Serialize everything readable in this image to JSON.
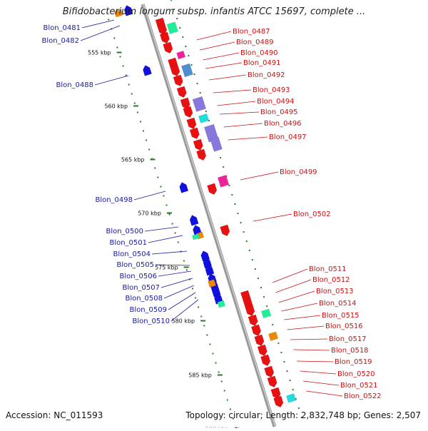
{
  "title": "Bifidobacterium longum subsp. infantis ATCC 15697, complete ...",
  "footer": {
    "accession": "Accession: NC_011593",
    "summary": "Topology: circular; Length: 2,832,748 bp; Genes: 2,507"
  },
  "kbp_ticks": [
    {
      "label": "555 kbp",
      "faint": false
    },
    {
      "label": "560 kbp",
      "faint": false
    },
    {
      "label": "565 kbp",
      "faint": false
    },
    {
      "label": "570 kbp",
      "faint": false
    },
    {
      "label": "575 kbp",
      "faint": false
    },
    {
      "label": "580 kbp",
      "faint": false
    },
    {
      "label": "585 kbp",
      "faint": false
    },
    {
      "label": "590 kbp",
      "faint": true
    }
  ],
  "left_genes": [
    "Blon_0481",
    "Blon_0482",
    "Blon_0488",
    "Blon_0498",
    "Blon_0500",
    "Blon_0501",
    "Blon_0504",
    "Blon_0505",
    "Blon_0506",
    "Blon_0507",
    "Blon_0508",
    "Blon_0509",
    "Blon_0510"
  ],
  "right_genes": [
    "Blon_0487",
    "Blon_0489",
    "Blon_0490",
    "Blon_0491",
    "Blon_0492",
    "Blon_0493",
    "Blon_0494",
    "Blon_0495",
    "Blon_0496",
    "Blon_0497",
    "Blon_0499",
    "Blon_0502",
    "Blon_0511",
    "Blon_0512",
    "Blon_0513",
    "Blon_0514",
    "Blon_0515",
    "Blon_0516",
    "Blon_0517",
    "Blon_0518",
    "Blon_0519",
    "Blon_0520",
    "Blon_0521",
    "Blon_0522"
  ],
  "colors": {
    "forward_gene": "#e81010",
    "reverse_gene": "#1010e0",
    "backbone": "#999999",
    "tick_green": "#2a7a2a",
    "left_label": "#1a1aa0",
    "right_label": "#cc1111",
    "feature_green": "#22ee99",
    "feature_magenta": "#ee2299",
    "feature_steel": "#4f8fcf",
    "feature_purple": "#8877dd",
    "feature_cyan": "#22dddd",
    "feature_orange": "#ee8800"
  }
}
